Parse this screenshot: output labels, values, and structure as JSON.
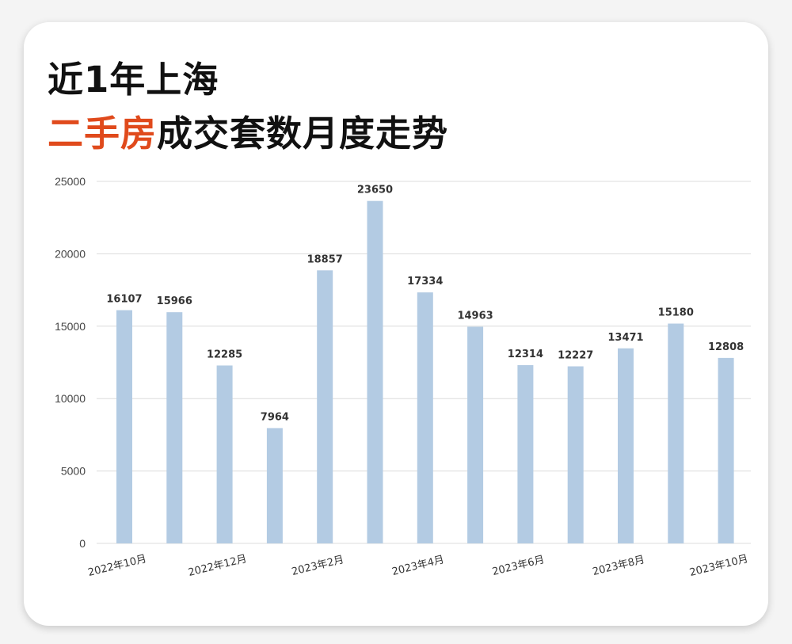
{
  "title": {
    "line1": "近1年上海",
    "line2_highlight": "二手房",
    "line2_rest": "成交套数月度走势",
    "highlight_color": "#e04a1c"
  },
  "chart_data": {
    "type": "bar",
    "title": "近1年上海二手房成交套数月度走势",
    "xlabel": "",
    "ylabel": "",
    "ylim": [
      0,
      25000
    ],
    "y_ticks": [
      0,
      5000,
      10000,
      15000,
      20000,
      25000
    ],
    "grid": true,
    "bar_color": "#b3cbe3",
    "values": [
      16107,
      15966,
      12285,
      7964,
      18857,
      23650,
      17334,
      14963,
      12314,
      12227,
      13471,
      15180,
      12808
    ],
    "x_tick_labels": [
      "2022年10月",
      "2022年12月",
      "2023年2月",
      "2023年4月",
      "2023年6月",
      "2023年8月",
      "2023年10月"
    ],
    "data_labels": true
  }
}
